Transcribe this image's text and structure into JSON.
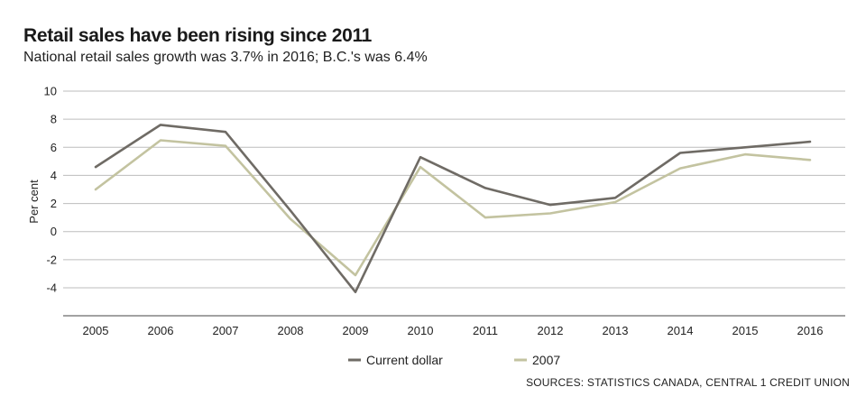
{
  "title": "Retail sales have been rising since 2011",
  "subtitle": "National retail sales growth was 3.7% in 2016; B.C.'s was 6.4%",
  "source": "SOURCES: STATISTICS CANADA, CENTRAL 1 CREDIT UNION",
  "colors": {
    "series_current": "#6f6b65",
    "series_2007": "#c3c3a0",
    "grid": "#bdbdbd",
    "axis": "#444444"
  },
  "chart_data": {
    "type": "line",
    "title": "Retail sales have been rising since 2011",
    "subtitle": "National retail sales growth was 3.7% in 2016; B.C.'s was 6.4%",
    "xlabel": "",
    "ylabel": "Per cent",
    "categories": [
      "2005",
      "2006",
      "2007",
      "2008",
      "2009",
      "2010",
      "2011",
      "2012",
      "2013",
      "2014",
      "2015",
      "2016"
    ],
    "ylim": [
      -6,
      10
    ],
    "yticks": [
      10,
      8,
      6,
      4,
      2,
      0,
      -2,
      -4
    ],
    "grid": true,
    "legend_position": "bottom-center",
    "series": [
      {
        "name": "Current dollar",
        "color": "#6f6b65",
        "values": [
          4.6,
          7.6,
          7.1,
          1.5,
          -4.3,
          5.3,
          3.1,
          1.9,
          2.4,
          5.6,
          6.0,
          6.4
        ]
      },
      {
        "name": "2007",
        "color": "#c3c3a0",
        "values": [
          3.0,
          6.5,
          6.1,
          0.9,
          -3.1,
          4.6,
          1.0,
          1.3,
          2.1,
          4.5,
          5.5,
          5.1
        ]
      }
    ]
  }
}
